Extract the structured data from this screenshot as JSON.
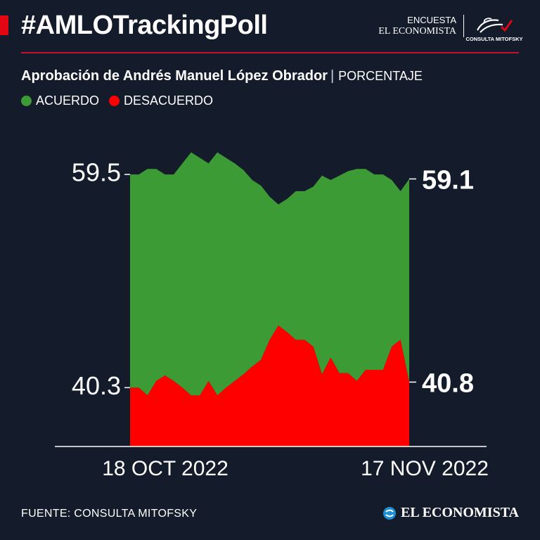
{
  "header": {
    "hashtag": "#AMLOTrackingPoll",
    "brand_line1": "ENCUESTA",
    "brand_line2": "EL ECONOMISTA",
    "partner_label": "CONSULTA MITOFSKY"
  },
  "colors": {
    "background": "#141c2b",
    "accent": "#e30613",
    "acuerdo": "#3d9b35",
    "desacuerdo": "#ff0000"
  },
  "chart_data": {
    "type": "area",
    "title": "Aprobación de Andrés Manuel López Obrador",
    "unit": "PORCENTAJE",
    "legend_position": "top-left",
    "grid": false,
    "x_start_label": "18 OCT 2022",
    "x_end_label": "17 NOV 2022",
    "ylim": [
      35,
      63.5
    ],
    "series": [
      {
        "name": "ACUERDO",
        "color": "#3d9b35",
        "values": [
          59.5,
          59.5,
          60.0,
          60.0,
          59.5,
          59.5,
          60.5,
          61.5,
          61.0,
          60.5,
          61.5,
          61.0,
          60.5,
          59.9,
          59.0,
          58.5,
          57.5,
          56.8,
          57.3,
          58.0,
          58.0,
          58.4,
          59.4,
          59.0,
          59.4,
          59.8,
          60.0,
          60.0,
          59.5,
          59.5,
          59.0,
          58.0,
          59.1
        ],
        "start_label": "59.5",
        "end_label": "59.1"
      },
      {
        "name": "DESACUERDO",
        "color": "#ff0000",
        "values": [
          40.3,
          40.3,
          39.6,
          40.9,
          41.4,
          40.9,
          40.3,
          39.6,
          39.6,
          40.9,
          39.6,
          40.3,
          40.9,
          41.5,
          42.2,
          42.8,
          44.6,
          45.9,
          45.3,
          44.6,
          44.6,
          44.0,
          41.5,
          43.0,
          41.6,
          41.6,
          40.9,
          41.9,
          41.9,
          41.9,
          44.0,
          44.6,
          40.8
        ],
        "start_label": "40.3",
        "end_label": "40.8"
      }
    ]
  },
  "footer": {
    "source": "FUENTE: CONSULTA MITOFSKY",
    "brand": "EL ECONOMISTA"
  }
}
